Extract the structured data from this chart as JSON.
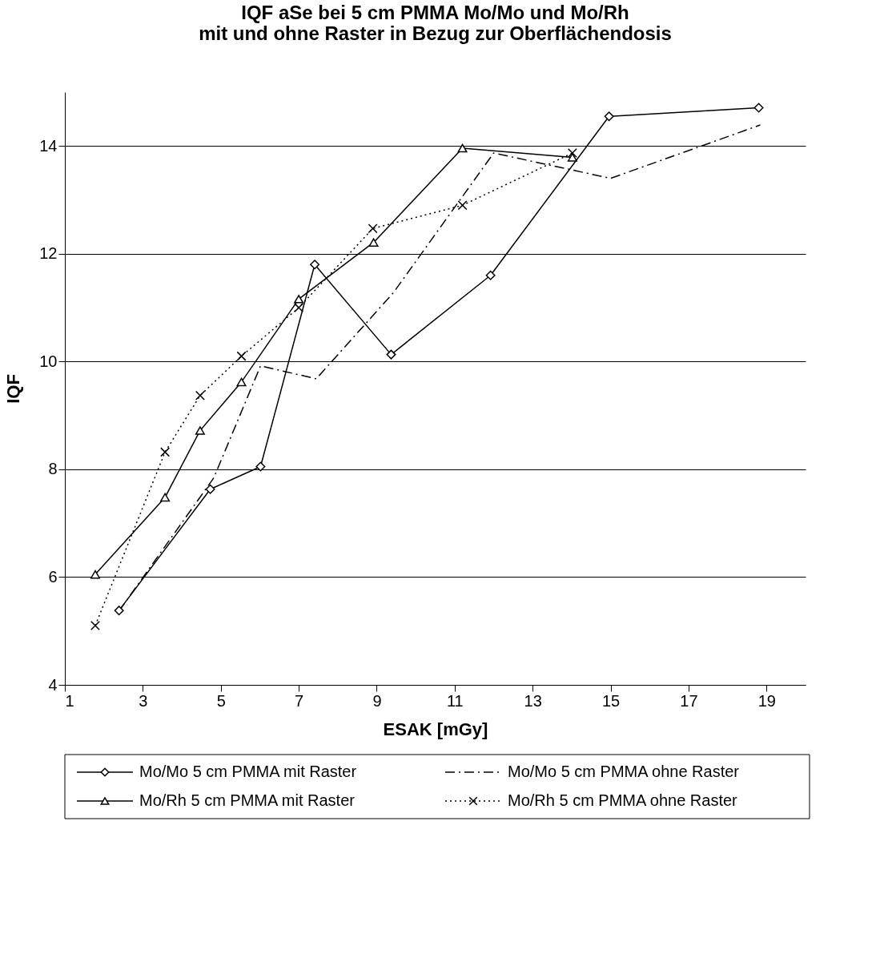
{
  "chart_data": {
    "type": "line",
    "title": "IQF aSe bei 5 cm PMMA Mo/Mo und Mo/Rh mit und ohne Raster in Bezug zur Oberflächendosis",
    "xlabel": "ESAK [mGy]",
    "ylabel": "IQF",
    "xlim": [
      1,
      20
    ],
    "xticks": [
      1,
      3,
      5,
      7,
      9,
      11,
      13,
      15,
      17,
      19
    ],
    "ylim": [
      4,
      15
    ],
    "yticks": [
      4,
      6,
      8,
      10,
      12,
      14
    ],
    "grid": "y",
    "legend": "bottom",
    "series": [
      {
        "name": "Mo/Mo 5 cm PMMA mit Raster",
        "color": "#000000",
        "marker": "diamond",
        "line_style": "solid",
        "x": [
          2.39,
          4.73,
          6.02,
          7.41,
          9.37,
          11.92,
          14.96,
          18.8
        ],
        "values": [
          5.38,
          7.63,
          8.05,
          11.8,
          10.13,
          11.6,
          14.55,
          14.71
        ]
      },
      {
        "name": "Mo/Mo 5 cm PMMA ohne Raster",
        "color": "#000000",
        "marker": "none",
        "line_style": "dashed",
        "x": [
          2.39,
          4.82,
          6.02,
          7.45,
          9.43,
          12.0,
          15.0,
          18.84
        ],
        "values": [
          5.37,
          7.84,
          9.92,
          9.68,
          11.28,
          13.87,
          13.4,
          14.39
        ]
      },
      {
        "name": "Mo/Rh 5 cm PMMA mit Raster",
        "color": "#000000",
        "marker": "triangle",
        "line_style": "solid",
        "x": [
          1.78,
          3.57,
          4.47,
          5.53,
          7.0,
          8.92,
          11.2,
          14.02
        ],
        "values": [
          6.05,
          7.48,
          8.72,
          9.62,
          11.16,
          12.21,
          13.96,
          13.79
        ]
      },
      {
        "name": "Mo/Rh 5 cm PMMA ohne Raster",
        "color": "#000000",
        "marker": "cross",
        "line_style": "dotted",
        "x": [
          1.78,
          3.57,
          4.47,
          5.53,
          7.0,
          8.9,
          11.2,
          14.02
        ],
        "values": [
          5.1,
          8.32,
          9.37,
          10.1,
          11.0,
          12.47,
          12.9,
          13.87
        ]
      }
    ]
  }
}
